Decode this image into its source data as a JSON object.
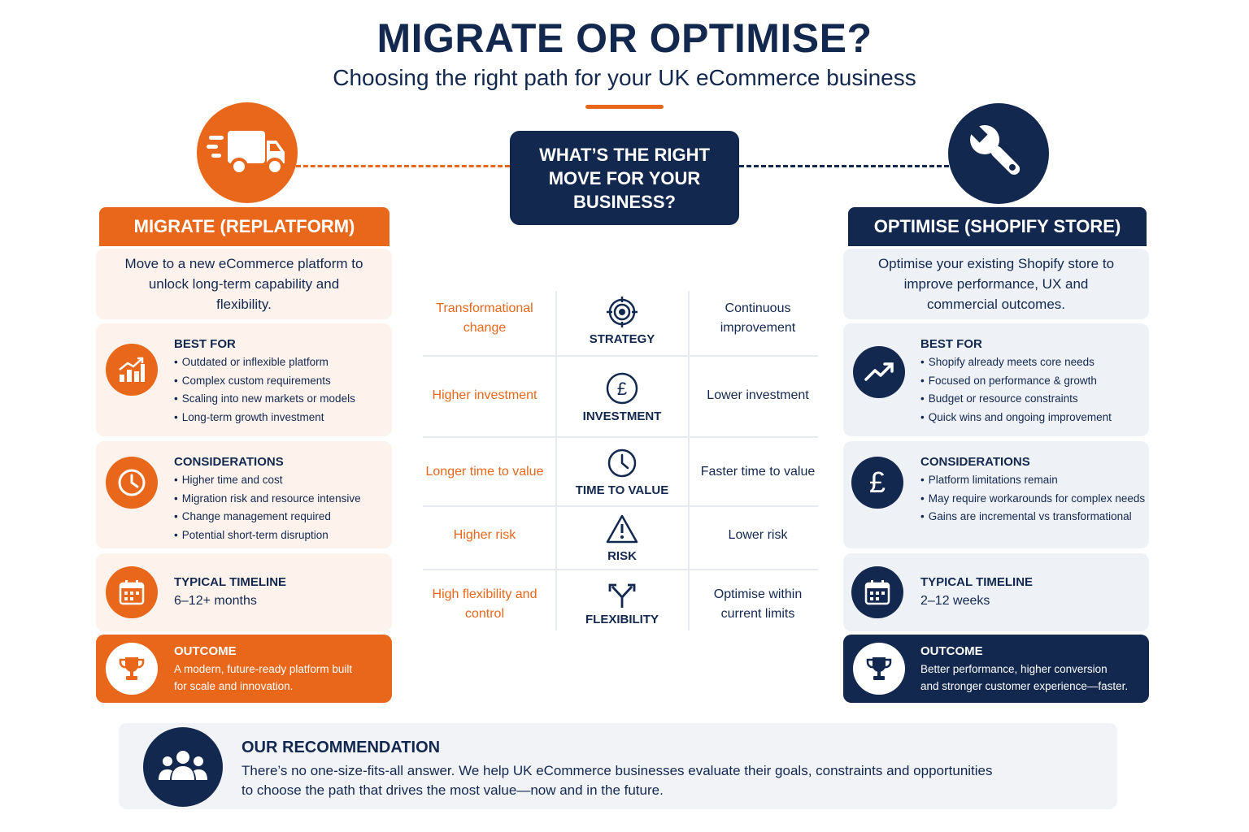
{
  "header": {
    "title": "MIGRATE OR OPTIMISE?",
    "subtitle": "Choosing the right path for your UK eCommerce business"
  },
  "center_question": "WHAT’S THE RIGHT MOVE FOR YOUR BUSINESS?",
  "colors": {
    "orange": "#e8671a",
    "navy": "#13284f",
    "orange_tint": "#fdf3ec",
    "navy_tint": "#eef1f6"
  },
  "migrate": {
    "icon": "truck-icon",
    "title": "MIGRATE (REPLATFORM)",
    "intro": "Move to a new eCommerce platform to unlock long-term capability and flexibility.",
    "best_for": {
      "icon": "growth-chart-icon",
      "heading": "BEST FOR",
      "items": [
        "Outdated or inflexible platform",
        "Complex custom requirements",
        "Scaling into new markets or models",
        "Long-term growth investment"
      ]
    },
    "considerations": {
      "icon": "clock-icon",
      "heading": "CONSIDERATIONS",
      "items": [
        "Higher time and cost",
        "Migration risk and resource intensive",
        "Change management required",
        "Potential short-term disruption"
      ]
    },
    "timeline": {
      "icon": "calendar-icon",
      "heading": "TYPICAL TIMELINE",
      "value": "6–12+ months"
    },
    "outcome": {
      "icon": "trophy-icon",
      "heading": "OUTCOME",
      "line1": "A modern, future-ready platform built",
      "line2": "for scale and innovation."
    }
  },
  "optimise": {
    "icon": "wrench-icon",
    "title": "OPTIMISE (SHOPIFY STORE)",
    "intro": "Optimise your existing Shopify store to improve performance, UX and commercial outcomes.",
    "best_for": {
      "icon": "trend-up-icon",
      "heading": "BEST FOR",
      "items": [
        "Shopify already meets core needs",
        "Focused on performance & growth",
        "Budget or resource constraints",
        "Quick wins and ongoing improvement"
      ]
    },
    "considerations": {
      "icon": "pound-icon",
      "heading": "CONSIDERATIONS",
      "items": [
        "Platform limitations remain",
        "May require workarounds for complex needs",
        "Gains are incremental vs transformational"
      ]
    },
    "timeline": {
      "icon": "calendar-icon",
      "heading": "TYPICAL TIMELINE",
      "value": "2–12 weeks"
    },
    "outcome": {
      "icon": "trophy-icon",
      "heading": "OUTCOME",
      "line1": "Better performance, higher conversion",
      "line2": "and stronger customer experience—faster."
    }
  },
  "comparison": [
    {
      "label": "STRATEGY",
      "icon": "target-icon",
      "migrate": "Transformational change",
      "optimise": "Continuous improvement"
    },
    {
      "label": "INVESTMENT",
      "icon": "pound-circle-icon",
      "migrate": "Higher investment",
      "optimise": "Lower investment"
    },
    {
      "label": "TIME TO VALUE",
      "icon": "clock-icon",
      "migrate": "Longer time to value",
      "optimise": "Faster time to value"
    },
    {
      "label": "RISK",
      "icon": "warning-icon",
      "migrate": "Higher risk",
      "optimise": "Lower risk"
    },
    {
      "label": "FLEXIBILITY",
      "icon": "split-arrow-icon",
      "migrate": "High flexibility and control",
      "optimise": "Optimise within current limits"
    }
  ],
  "recommendation": {
    "icon": "people-icon",
    "heading": "OUR RECOMMENDATION",
    "line1": "There’s no one-size-fits-all answer. We help UK eCommerce businesses evaluate their goals, constraints and opportunities",
    "line2": "to choose the path that drives the most value—now and in the future."
  }
}
